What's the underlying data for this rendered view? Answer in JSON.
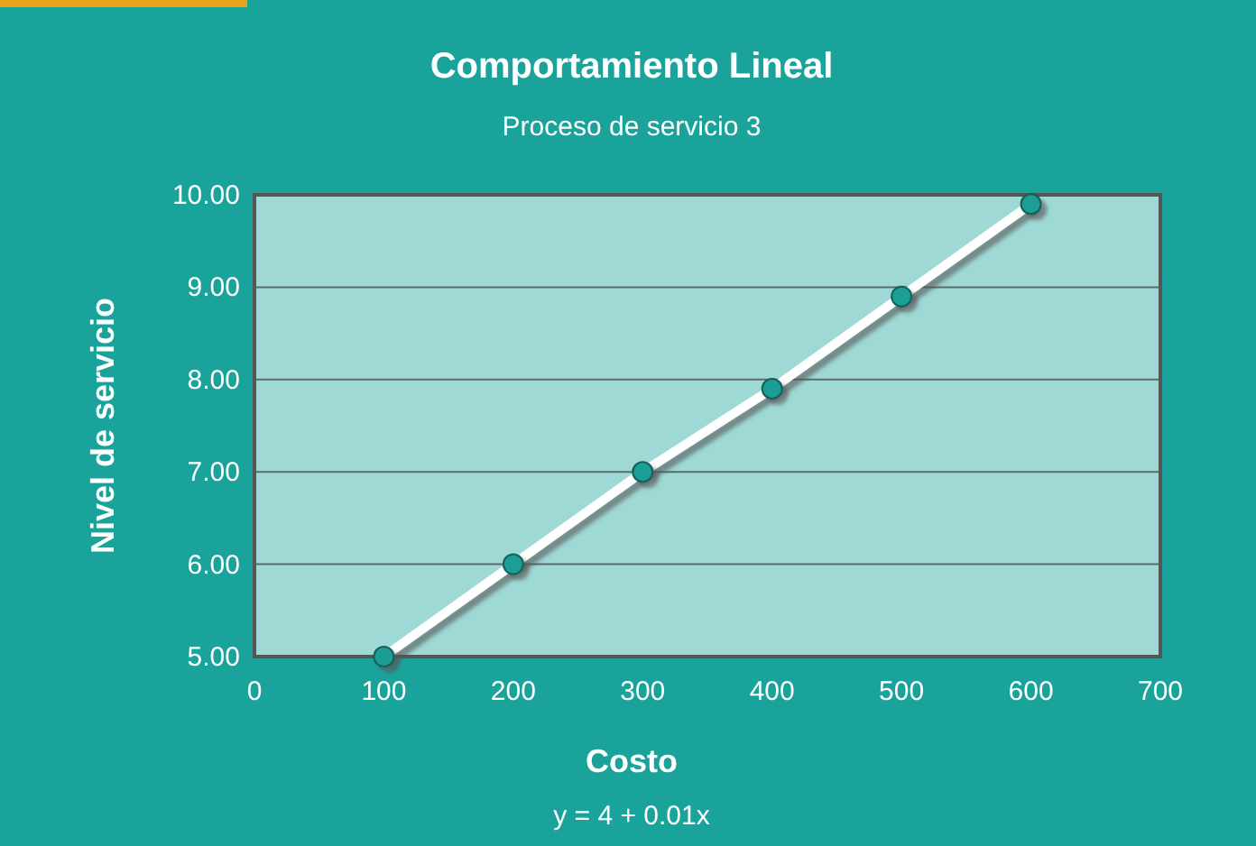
{
  "chart_data": {
    "type": "line",
    "title": "Comportamiento Lineal",
    "subtitle": "Proceso de servicio 3",
    "xlabel": "Costo",
    "ylabel": "Nivel de servicio",
    "annotations": [
      "y = 4 + 0.01x"
    ],
    "x": [
      100,
      200,
      300,
      400,
      500,
      600
    ],
    "series": [
      {
        "color": "#ffffff",
        "values": [
          5,
          6,
          7,
          7.9,
          8.9,
          9.9
        ]
      },
      {
        "type": "scatter",
        "color": "#1a9e96",
        "values": [
          5,
          6,
          7,
          7.9,
          8.9,
          9.9
        ],
        "marker": "circle"
      }
    ],
    "xlim": [
      0,
      700
    ],
    "xticks": [
      0,
      100,
      200,
      300,
      400,
      500,
      600,
      700
    ],
    "ylim": [
      5,
      10
    ],
    "yticks": [
      {
        "value": 5,
        "label": "5.00"
      },
      {
        "value": 6,
        "label": "6.00"
      },
      {
        "value": 7,
        "label": "7.00"
      },
      {
        "value": 8,
        "label": "8.00"
      },
      {
        "value": 9,
        "label": "9.00"
      },
      {
        "value": 10,
        "label": "10.00"
      }
    ],
    "grid": "y"
  }
}
